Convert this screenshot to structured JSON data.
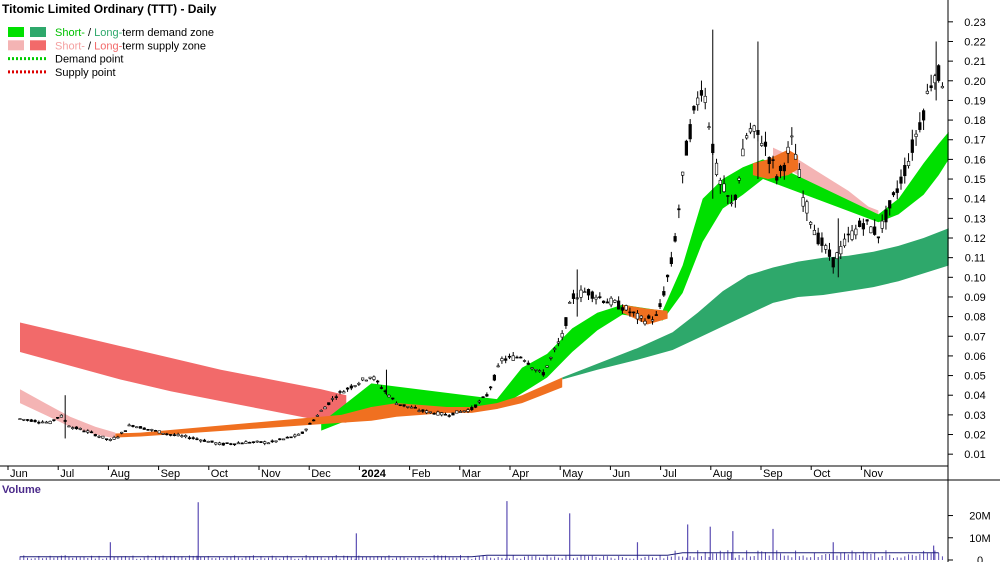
{
  "title": "Titomic Limited Ordinary (TTT) - Daily",
  "legend": [
    {
      "label_short": "Short-",
      "sep": " / ",
      "label_long": "Long-",
      "label_rest": "term demand zone",
      "swatch_short": "#00e000",
      "swatch_long": "#2ea86b",
      "short_color": "#00c000",
      "long_color": "#2ea86b",
      "rest_color": "#000000",
      "style": "box"
    },
    {
      "label_short": "Short-",
      "sep": " / ",
      "label_long": "Long-",
      "label_rest": "term supply zone",
      "swatch_short": "#f4b4b4",
      "swatch_long": "#f26a6a",
      "short_color": "#f4a0a0",
      "long_color": "#f26a6a",
      "rest_color": "#000000",
      "style": "box"
    },
    {
      "label": "Demand point",
      "color": "#00cc00",
      "style": "dots"
    },
    {
      "label": "Supply point",
      "color": "#dd0000",
      "style": "dots"
    }
  ],
  "volume_label": "Volume",
  "colors": {
    "price_bar": "#000000",
    "candle_up": "#ffffff",
    "short_demand": "#00e000",
    "long_demand": "#2ea86b",
    "short_supply": "#f4b4b4",
    "long_supply": "#f26a6a",
    "overlap": "#f07020",
    "volume_bar": "#5b4db3",
    "volume_avg": "#1f1f7a",
    "axis": "#000000"
  },
  "chart_data": [
    {
      "type": "line",
      "subtype": "candlestick_with_zones",
      "title": "Titomic Limited Ordinary (TTT) - Daily",
      "x_ticks": [
        "Jun",
        "Jul",
        "Aug",
        "Sep",
        "Oct",
        "Nov",
        "Dec",
        "2024",
        "Feb",
        "Mar",
        "Apr",
        "May",
        "Jun",
        "Jul",
        "Aug",
        "Sep",
        "Oct",
        "Nov"
      ],
      "y_ticks": [
        "0.01",
        "0.02",
        "0.03",
        "0.04",
        "0.05",
        "0.06",
        "0.07",
        "0.08",
        "0.09",
        "0.10",
        "0.11",
        "0.12",
        "0.13",
        "0.14",
        "0.15",
        "0.16",
        "0.17",
        "0.18",
        "0.19",
        "0.20",
        "0.21",
        "0.22",
        "0.23"
      ],
      "ylim": [
        0.005,
        0.235
      ],
      "y_axis_position": "right",
      "price_path": [
        {
          "m": 0,
          "v": 0.028
        },
        {
          "m": 0.3,
          "v": 0.027
        },
        {
          "m": 0.6,
          "v": 0.026
        },
        {
          "m": 0.8,
          "v": 0.03
        },
        {
          "m": 1.0,
          "v": 0.024
        },
        {
          "m": 1.3,
          "v": 0.022
        },
        {
          "m": 1.6,
          "v": 0.019
        },
        {
          "m": 1.8,
          "v": 0.017
        },
        {
          "m": 2.0,
          "v": 0.02
        },
        {
          "m": 2.2,
          "v": 0.025
        },
        {
          "m": 2.5,
          "v": 0.023
        },
        {
          "m": 3.0,
          "v": 0.02
        },
        {
          "m": 3.5,
          "v": 0.018
        },
        {
          "m": 4.0,
          "v": 0.015
        },
        {
          "m": 4.5,
          "v": 0.016
        },
        {
          "m": 5.0,
          "v": 0.016
        },
        {
          "m": 5.6,
          "v": 0.02
        },
        {
          "m": 6.0,
          "v": 0.032
        },
        {
          "m": 6.3,
          "v": 0.04
        },
        {
          "m": 6.7,
          "v": 0.046
        },
        {
          "m": 7.0,
          "v": 0.05
        },
        {
          "m": 7.2,
          "v": 0.044
        },
        {
          "m": 7.5,
          "v": 0.036
        },
        {
          "m": 8.0,
          "v": 0.032
        },
        {
          "m": 8.5,
          "v": 0.03
        },
        {
          "m": 9.0,
          "v": 0.033
        },
        {
          "m": 9.3,
          "v": 0.04
        },
        {
          "m": 9.6,
          "v": 0.058
        },
        {
          "m": 10.0,
          "v": 0.06
        },
        {
          "m": 10.4,
          "v": 0.05
        },
        {
          "m": 10.8,
          "v": 0.07
        },
        {
          "m": 11.0,
          "v": 0.09
        },
        {
          "m": 11.3,
          "v": 0.093
        },
        {
          "m": 11.7,
          "v": 0.088
        },
        {
          "m": 12.0,
          "v": 0.085
        },
        {
          "m": 12.4,
          "v": 0.078
        },
        {
          "m": 12.7,
          "v": 0.08
        },
        {
          "m": 13.0,
          "v": 0.11
        },
        {
          "m": 13.3,
          "v": 0.17
        },
        {
          "m": 13.6,
          "v": 0.2
        },
        {
          "m": 13.9,
          "v": 0.15
        },
        {
          "m": 14.2,
          "v": 0.135
        },
        {
          "m": 14.5,
          "v": 0.175
        },
        {
          "m": 14.8,
          "v": 0.17
        },
        {
          "m": 15.1,
          "v": 0.15
        },
        {
          "m": 15.4,
          "v": 0.17
        },
        {
          "m": 15.6,
          "v": 0.14
        },
        {
          "m": 15.9,
          "v": 0.12
        },
        {
          "m": 16.2,
          "v": 0.108
        },
        {
          "m": 16.5,
          "v": 0.12
        },
        {
          "m": 16.8,
          "v": 0.128
        },
        {
          "m": 17.1,
          "v": 0.122
        },
        {
          "m": 17.4,
          "v": 0.14
        },
        {
          "m": 17.7,
          "v": 0.16
        },
        {
          "m": 18.0,
          "v": 0.185
        },
        {
          "m": 18.2,
          "v": 0.205
        },
        {
          "m": 18.4,
          "v": 0.2
        }
      ],
      "spikes": [
        {
          "m": 0.9,
          "low": 0.018,
          "high": 0.04
        },
        {
          "m": 13.8,
          "low": 0.14,
          "high": 0.226
        },
        {
          "m": 14.7,
          "low": 0.15,
          "high": 0.22
        },
        {
          "m": 16.3,
          "low": 0.1,
          "high": 0.13
        },
        {
          "m": 18.25,
          "low": 0.19,
          "high": 0.22
        },
        {
          "m": 7.3,
          "low": 0.04,
          "high": 0.053
        },
        {
          "m": 11.1,
          "low": 0.08,
          "high": 0.104
        }
      ],
      "zones": {
        "long_supply": [
          {
            "m": 0,
            "lo": 0.062,
            "hi": 0.077
          },
          {
            "m": 1,
            "lo": 0.055,
            "hi": 0.071
          },
          {
            "m": 2,
            "lo": 0.048,
            "hi": 0.065
          },
          {
            "m": 3,
            "lo": 0.042,
            "hi": 0.059
          },
          {
            "m": 4,
            "lo": 0.037,
            "hi": 0.053
          },
          {
            "m": 5,
            "lo": 0.032,
            "hi": 0.048
          },
          {
            "m": 6,
            "lo": 0.027,
            "hi": 0.043
          },
          {
            "m": 6.5,
            "lo": 0.026,
            "hi": 0.04
          }
        ],
        "short_supply": [
          {
            "m": 0,
            "lo": 0.036,
            "hi": 0.043
          },
          {
            "m": 0.5,
            "lo": 0.03,
            "hi": 0.036
          },
          {
            "m": 1,
            "lo": 0.024,
            "hi": 0.029
          },
          {
            "m": 1.5,
            "lo": 0.02,
            "hi": 0.024
          },
          {
            "m": 1.9,
            "lo": 0.018,
            "hi": 0.021
          }
        ],
        "short_supply_late": [
          {
            "m": 15.0,
            "lo": 0.16,
            "hi": 0.166
          },
          {
            "m": 15.5,
            "lo": 0.152,
            "hi": 0.16
          },
          {
            "m": 16.0,
            "lo": 0.142,
            "hi": 0.152
          },
          {
            "m": 16.5,
            "lo": 0.134,
            "hi": 0.144
          },
          {
            "m": 16.9,
            "lo": 0.13,
            "hi": 0.136
          },
          {
            "m": 17.1,
            "lo": 0.131,
            "hi": 0.134
          }
        ],
        "short_demand": [
          {
            "m": 6.0,
            "lo": 0.022,
            "hi": 0.026
          },
          {
            "m": 6.5,
            "lo": 0.027,
            "hi": 0.036
          },
          {
            "m": 7.0,
            "lo": 0.034,
            "hi": 0.046
          },
          {
            "m": 9.5,
            "lo": 0.033,
            "hi": 0.038
          },
          {
            "m": 10.0,
            "lo": 0.041,
            "hi": 0.054
          },
          {
            "m": 10.5,
            "lo": 0.049,
            "hi": 0.061
          },
          {
            "m": 11.0,
            "lo": 0.062,
            "hi": 0.074
          },
          {
            "m": 11.5,
            "lo": 0.073,
            "hi": 0.082
          },
          {
            "m": 12.0,
            "lo": 0.081,
            "hi": 0.086
          },
          {
            "m": 12.8,
            "lo": 0.078,
            "hi": 0.083
          },
          {
            "m": 13.2,
            "lo": 0.092,
            "hi": 0.106
          },
          {
            "m": 13.6,
            "lo": 0.118,
            "hi": 0.14
          },
          {
            "m": 14.0,
            "lo": 0.135,
            "hi": 0.15
          },
          {
            "m": 14.4,
            "lo": 0.142,
            "hi": 0.156
          },
          {
            "m": 14.8,
            "lo": 0.15,
            "hi": 0.16
          },
          {
            "m": 17.1,
            "lo": 0.128,
            "hi": 0.132
          },
          {
            "m": 17.5,
            "lo": 0.132,
            "hi": 0.14
          },
          {
            "m": 18.0,
            "lo": 0.142,
            "hi": 0.158
          },
          {
            "m": 18.3,
            "lo": 0.152,
            "hi": 0.168
          },
          {
            "m": 18.5,
            "lo": 0.16,
            "hi": 0.174
          }
        ],
        "long_demand": [
          {
            "m": 10.8,
            "lo": 0.048,
            "hi": 0.049
          },
          {
            "m": 11.5,
            "lo": 0.053,
            "hi": 0.056
          },
          {
            "m": 12.3,
            "lo": 0.058,
            "hi": 0.064
          },
          {
            "m": 13.0,
            "lo": 0.063,
            "hi": 0.072
          },
          {
            "m": 13.5,
            "lo": 0.069,
            "hi": 0.082
          },
          {
            "m": 14.0,
            "lo": 0.075,
            "hi": 0.093
          },
          {
            "m": 14.5,
            "lo": 0.081,
            "hi": 0.101
          },
          {
            "m": 15.0,
            "lo": 0.087,
            "hi": 0.105
          },
          {
            "m": 15.5,
            "lo": 0.09,
            "hi": 0.108
          },
          {
            "m": 16.0,
            "lo": 0.091,
            "hi": 0.11
          },
          {
            "m": 16.5,
            "lo": 0.093,
            "hi": 0.111
          },
          {
            "m": 17.0,
            "lo": 0.095,
            "hi": 0.113
          },
          {
            "m": 17.5,
            "lo": 0.098,
            "hi": 0.116
          },
          {
            "m": 18.0,
            "lo": 0.102,
            "hi": 0.12
          },
          {
            "m": 18.5,
            "lo": 0.106,
            "hi": 0.125
          }
        ],
        "overlap": [
          {
            "m": 1.9,
            "lo": 0.0185,
            "hi": 0.0205
          },
          {
            "m": 2.4,
            "lo": 0.019,
            "hi": 0.021
          },
          {
            "m": 6.4,
            "lo": 0.026,
            "hi": 0.03
          },
          {
            "m": 7.0,
            "lo": 0.027,
            "hi": 0.034
          },
          {
            "m": 7.5,
            "lo": 0.029,
            "hi": 0.036
          },
          {
            "m": 8.0,
            "lo": 0.03,
            "hi": 0.035
          },
          {
            "m": 8.5,
            "lo": 0.031,
            "hi": 0.034
          },
          {
            "m": 9.0,
            "lo": 0.031,
            "hi": 0.034
          },
          {
            "m": 9.5,
            "lo": 0.033,
            "hi": 0.036
          },
          {
            "m": 10.0,
            "lo": 0.036,
            "hi": 0.04
          },
          {
            "m": 10.8,
            "lo": 0.044,
            "hi": 0.049
          }
        ],
        "overlap_2": [
          {
            "m": 12.0,
            "lo": 0.082,
            "hi": 0.086
          },
          {
            "m": 12.5,
            "lo": 0.076,
            "hi": 0.084
          },
          {
            "m": 12.9,
            "lo": 0.079,
            "hi": 0.083
          }
        ],
        "overlap_3": [
          {
            "m": 14.6,
            "lo": 0.152,
            "hi": 0.158
          },
          {
            "m": 14.9,
            "lo": 0.15,
            "hi": 0.16
          },
          {
            "m": 15.3,
            "lo": 0.152,
            "hi": 0.165
          },
          {
            "m": 15.5,
            "lo": 0.155,
            "hi": 0.162
          }
        ]
      }
    },
    {
      "type": "bar",
      "title": "Volume",
      "y_ticks": [
        "0",
        "10M",
        "20M"
      ],
      "ylim": [
        0,
        27000000
      ],
      "volume_spikes": [
        {
          "m": 3.55,
          "v": 26000000
        },
        {
          "m": 9.7,
          "v": 26500000
        },
        {
          "m": 10.95,
          "v": 21000000
        },
        {
          "m": 13.3,
          "v": 16000000
        },
        {
          "m": 13.75,
          "v": 15000000
        },
        {
          "m": 14.2,
          "v": 13000000
        },
        {
          "m": 15.0,
          "v": 14000000
        },
        {
          "m": 6.7,
          "v": 12000000
        },
        {
          "m": 1.8,
          "v": 8000000
        },
        {
          "m": 12.3,
          "v": 8000000
        },
        {
          "m": 16.2,
          "v": 8000000
        },
        {
          "m": 18.2,
          "v": 6500000
        }
      ],
      "baseline_volume": 1500000
    }
  ]
}
